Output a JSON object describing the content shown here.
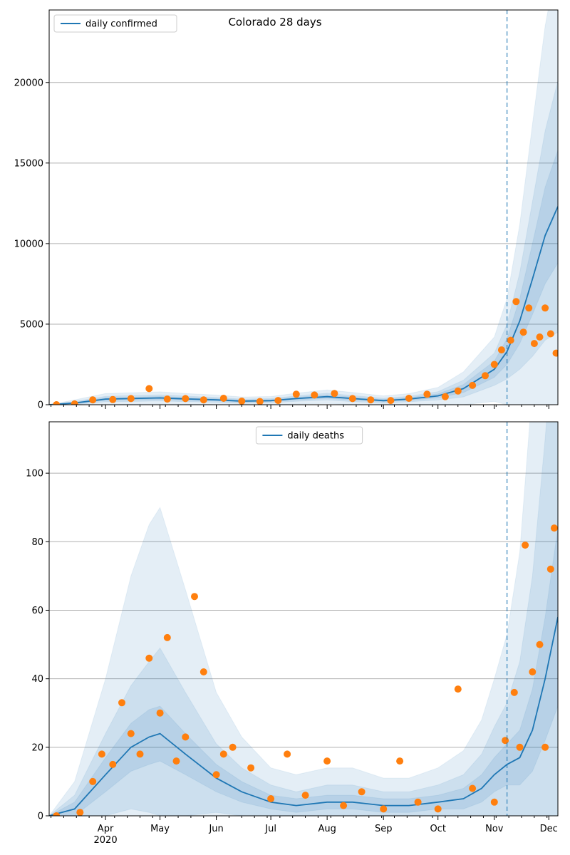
{
  "chart_data": [
    {
      "type": "line",
      "title": "Colorado 28 days",
      "legend": [
        "daily confirmed"
      ],
      "legend_position": "top-left",
      "grid": "y",
      "ylim": [
        0,
        24500
      ],
      "yticks": [
        0,
        5000,
        10000,
        15000,
        20000
      ],
      "xlim": [
        "2020-03-01",
        "2020-12-06"
      ],
      "xticks": [
        {
          "label": "Apr",
          "date": "2020-04-01"
        },
        {
          "label": "May",
          "date": "2020-05-01"
        },
        {
          "label": "Jun",
          "date": "2020-06-01"
        },
        {
          "label": "Jul",
          "date": "2020-07-01"
        },
        {
          "label": "Aug",
          "date": "2020-08-01"
        },
        {
          "label": "Sep",
          "date": "2020-09-01"
        },
        {
          "label": "Oct",
          "date": "2020-10-01"
        },
        {
          "label": "Nov",
          "date": "2020-11-01"
        },
        {
          "label": "Dec",
          "date": "2020-12-01"
        }
      ],
      "year_label": "2020",
      "forecast_start": "2020-11-08",
      "colors": {
        "line": "#1f77b4",
        "points": "#ff7f0e",
        "band": "#1f77b4"
      },
      "series": [
        {
          "name": "daily confirmed",
          "x": [
            "2020-03-01",
            "2020-03-15",
            "2020-04-01",
            "2020-04-15",
            "2020-05-01",
            "2020-05-15",
            "2020-06-01",
            "2020-06-15",
            "2020-07-01",
            "2020-07-15",
            "2020-08-01",
            "2020-08-15",
            "2020-09-01",
            "2020-09-15",
            "2020-10-01",
            "2020-10-15",
            "2020-11-01",
            "2020-11-08",
            "2020-11-15",
            "2020-11-22",
            "2020-11-29",
            "2020-12-06"
          ],
          "values": [
            0,
            100,
            350,
            380,
            420,
            360,
            300,
            220,
            250,
            380,
            500,
            380,
            250,
            350,
            550,
            1000,
            2200,
            3300,
            5200,
            7800,
            10500,
            12300
          ],
          "band_inner_hw": [
            0,
            40,
            80,
            80,
            90,
            80,
            70,
            60,
            60,
            80,
            100,
            90,
            70,
            80,
            120,
            250,
            500,
            800,
            1400,
            2200,
            3000,
            3500
          ],
          "band_mid_hw": [
            0,
            100,
            170,
            180,
            190,
            170,
            150,
            130,
            130,
            170,
            210,
            190,
            150,
            170,
            260,
            520,
            1000,
            1700,
            3000,
            4800,
            6500,
            7800
          ],
          "band_outer_hw": [
            0,
            200,
            350,
            360,
            380,
            340,
            300,
            260,
            260,
            340,
            420,
            380,
            300,
            340,
            520,
            1040,
            2000,
            3300,
            6000,
            9600,
            13000,
            15500
          ]
        },
        {
          "name": "observed",
          "x": [
            "2020-03-05",
            "2020-03-15",
            "2020-03-25",
            "2020-04-05",
            "2020-04-15",
            "2020-04-25",
            "2020-05-05",
            "2020-05-15",
            "2020-05-25",
            "2020-06-05",
            "2020-06-15",
            "2020-06-25",
            "2020-07-05",
            "2020-07-15",
            "2020-07-25",
            "2020-08-05",
            "2020-08-15",
            "2020-08-25",
            "2020-09-05",
            "2020-09-15",
            "2020-09-25",
            "2020-10-05",
            "2020-10-12",
            "2020-10-20",
            "2020-10-27",
            "2020-11-01",
            "2020-11-05",
            "2020-11-10",
            "2020-11-13",
            "2020-11-17",
            "2020-11-20",
            "2020-11-23",
            "2020-11-26",
            "2020-11-29",
            "2020-12-02",
            "2020-12-05"
          ],
          "values": [
            0,
            50,
            300,
            320,
            380,
            1000,
            350,
            380,
            300,
            400,
            220,
            200,
            260,
            650,
            600,
            700,
            380,
            300,
            260,
            400,
            650,
            500,
            850,
            1200,
            1800,
            2500,
            3400,
            4000,
            6400,
            4500,
            6000,
            3800,
            4200,
            6000,
            4400,
            3200
          ]
        }
      ]
    },
    {
      "type": "line",
      "title": "",
      "legend": [
        "daily deaths"
      ],
      "legend_position": "top-center",
      "grid": "y",
      "ylim": [
        0,
        115
      ],
      "yticks": [
        0,
        20,
        40,
        60,
        80,
        100
      ],
      "xlim": [
        "2020-03-01",
        "2020-12-06"
      ],
      "xticks": [
        {
          "label": "Apr",
          "date": "2020-04-01"
        },
        {
          "label": "May",
          "date": "2020-05-01"
        },
        {
          "label": "Jun",
          "date": "2020-06-01"
        },
        {
          "label": "Jul",
          "date": "2020-07-01"
        },
        {
          "label": "Aug",
          "date": "2020-08-01"
        },
        {
          "label": "Sep",
          "date": "2020-09-01"
        },
        {
          "label": "Oct",
          "date": "2020-10-01"
        },
        {
          "label": "Nov",
          "date": "2020-11-01"
        },
        {
          "label": "Dec",
          "date": "2020-12-01"
        }
      ],
      "year_label": "2020",
      "forecast_start": "2020-11-08",
      "colors": {
        "line": "#1f77b4",
        "points": "#ff7f0e",
        "band": "#1f77b4"
      },
      "series": [
        {
          "name": "daily deaths",
          "x": [
            "2020-03-01",
            "2020-03-15",
            "2020-04-01",
            "2020-04-15",
            "2020-04-25",
            "2020-05-01",
            "2020-05-15",
            "2020-06-01",
            "2020-06-15",
            "2020-07-01",
            "2020-07-15",
            "2020-08-01",
            "2020-08-15",
            "2020-09-01",
            "2020-09-15",
            "2020-10-01",
            "2020-10-15",
            "2020-10-25",
            "2020-11-01",
            "2020-11-08",
            "2020-11-15",
            "2020-11-22",
            "2020-11-29",
            "2020-12-06"
          ],
          "values": [
            0,
            2,
            12,
            20,
            23,
            24,
            18,
            11,
            7,
            4,
            3,
            4,
            4,
            3,
            3,
            4,
            5,
            8,
            12,
            15,
            17,
            25,
            40,
            58
          ],
          "band_inner_hw": [
            0,
            2,
            5,
            7,
            8,
            8,
            6,
            4,
            3,
            2,
            2,
            2,
            2,
            2,
            2,
            2,
            3,
            4,
            5,
            6,
            8,
            12,
            18,
            26
          ],
          "band_mid_hw": [
            0,
            4,
            12,
            18,
            22,
            25,
            18,
            10,
            7,
            5,
            4,
            5,
            5,
            4,
            4,
            5,
            7,
            10,
            14,
            18,
            28,
            45,
            70,
            100
          ],
          "band_outer_hw": [
            0,
            8,
            28,
            50,
            62,
            66,
            48,
            25,
            16,
            10,
            9,
            10,
            10,
            8,
            8,
            10,
            14,
            20,
            28,
            38,
            60,
            100,
            150,
            200
          ]
        },
        {
          "name": "observed",
          "x": [
            "2020-03-05",
            "2020-03-18",
            "2020-03-25",
            "2020-03-30",
            "2020-04-05",
            "2020-04-10",
            "2020-04-15",
            "2020-04-20",
            "2020-04-25",
            "2020-05-01",
            "2020-05-05",
            "2020-05-10",
            "2020-05-15",
            "2020-05-20",
            "2020-05-25",
            "2020-06-01",
            "2020-06-05",
            "2020-06-10",
            "2020-06-20",
            "2020-07-01",
            "2020-07-10",
            "2020-07-20",
            "2020-08-01",
            "2020-08-10",
            "2020-08-20",
            "2020-09-01",
            "2020-09-10",
            "2020-09-20",
            "2020-10-01",
            "2020-10-12",
            "2020-10-20",
            "2020-11-01",
            "2020-11-07",
            "2020-11-12",
            "2020-11-15",
            "2020-11-18",
            "2020-11-22",
            "2020-11-26",
            "2020-11-29",
            "2020-12-02",
            "2020-12-04"
          ],
          "values": [
            0,
            1,
            10,
            18,
            15,
            33,
            24,
            18,
            46,
            30,
            52,
            16,
            23,
            64,
            42,
            12,
            18,
            20,
            14,
            5,
            18,
            6,
            16,
            3,
            7,
            2,
            16,
            4,
            2,
            37,
            8,
            4,
            22,
            36,
            20,
            79,
            42,
            50,
            20,
            72,
            84
          ]
        }
      ]
    }
  ]
}
